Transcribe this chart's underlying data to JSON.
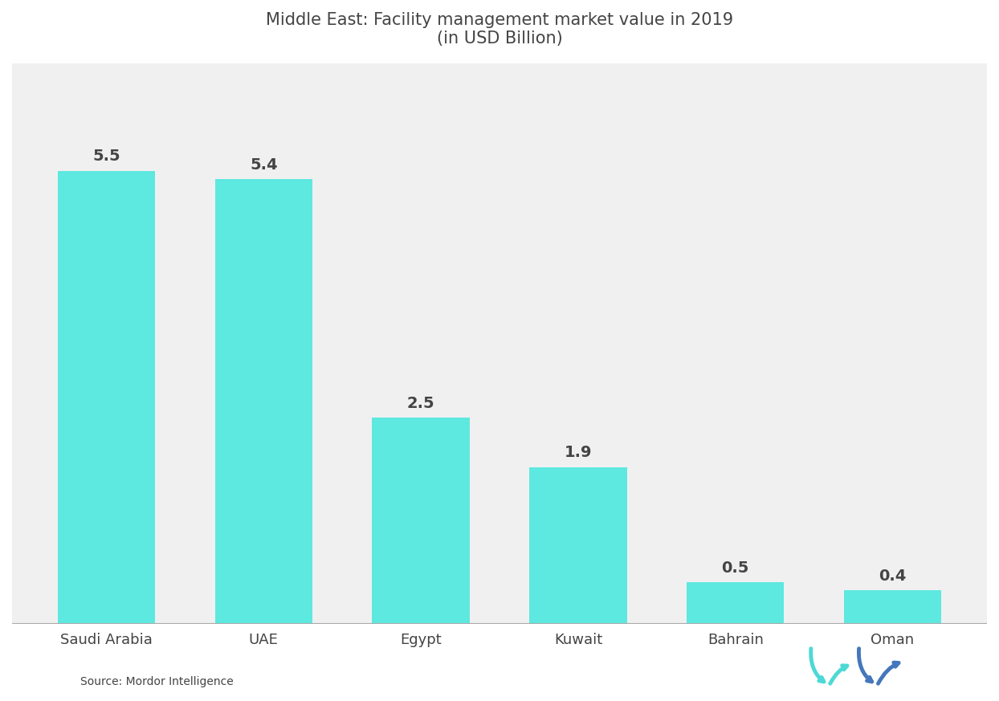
{
  "title_line1": "Middle East: Facility management market value in 2019",
  "title_line2": "(in USD Billion)",
  "categories": [
    "Saudi Arabia",
    "UAE",
    "Egypt",
    "Kuwait",
    "Bahrain",
    "Oman"
  ],
  "values": [
    5.5,
    5.4,
    2.5,
    1.9,
    0.5,
    0.4
  ],
  "bar_color": "#5DE8E0",
  "background_color": "#FFFFFF",
  "plot_bg_color": "#F0F0F0",
  "text_color": "#444444",
  "title_color": "#444444",
  "source_text": "Source: Mordor Intelligence",
  "ylim": [
    0,
    6.8
  ],
  "bar_width": 0.62,
  "value_labels": [
    "5.5",
    "5.4",
    "2.5",
    "1.9",
    "0.5",
    "0.4"
  ],
  "title_fontsize": 15,
  "label_fontsize": 14,
  "tick_fontsize": 13,
  "source_fontsize": 10,
  "baseline_color": "#AAAAAA"
}
